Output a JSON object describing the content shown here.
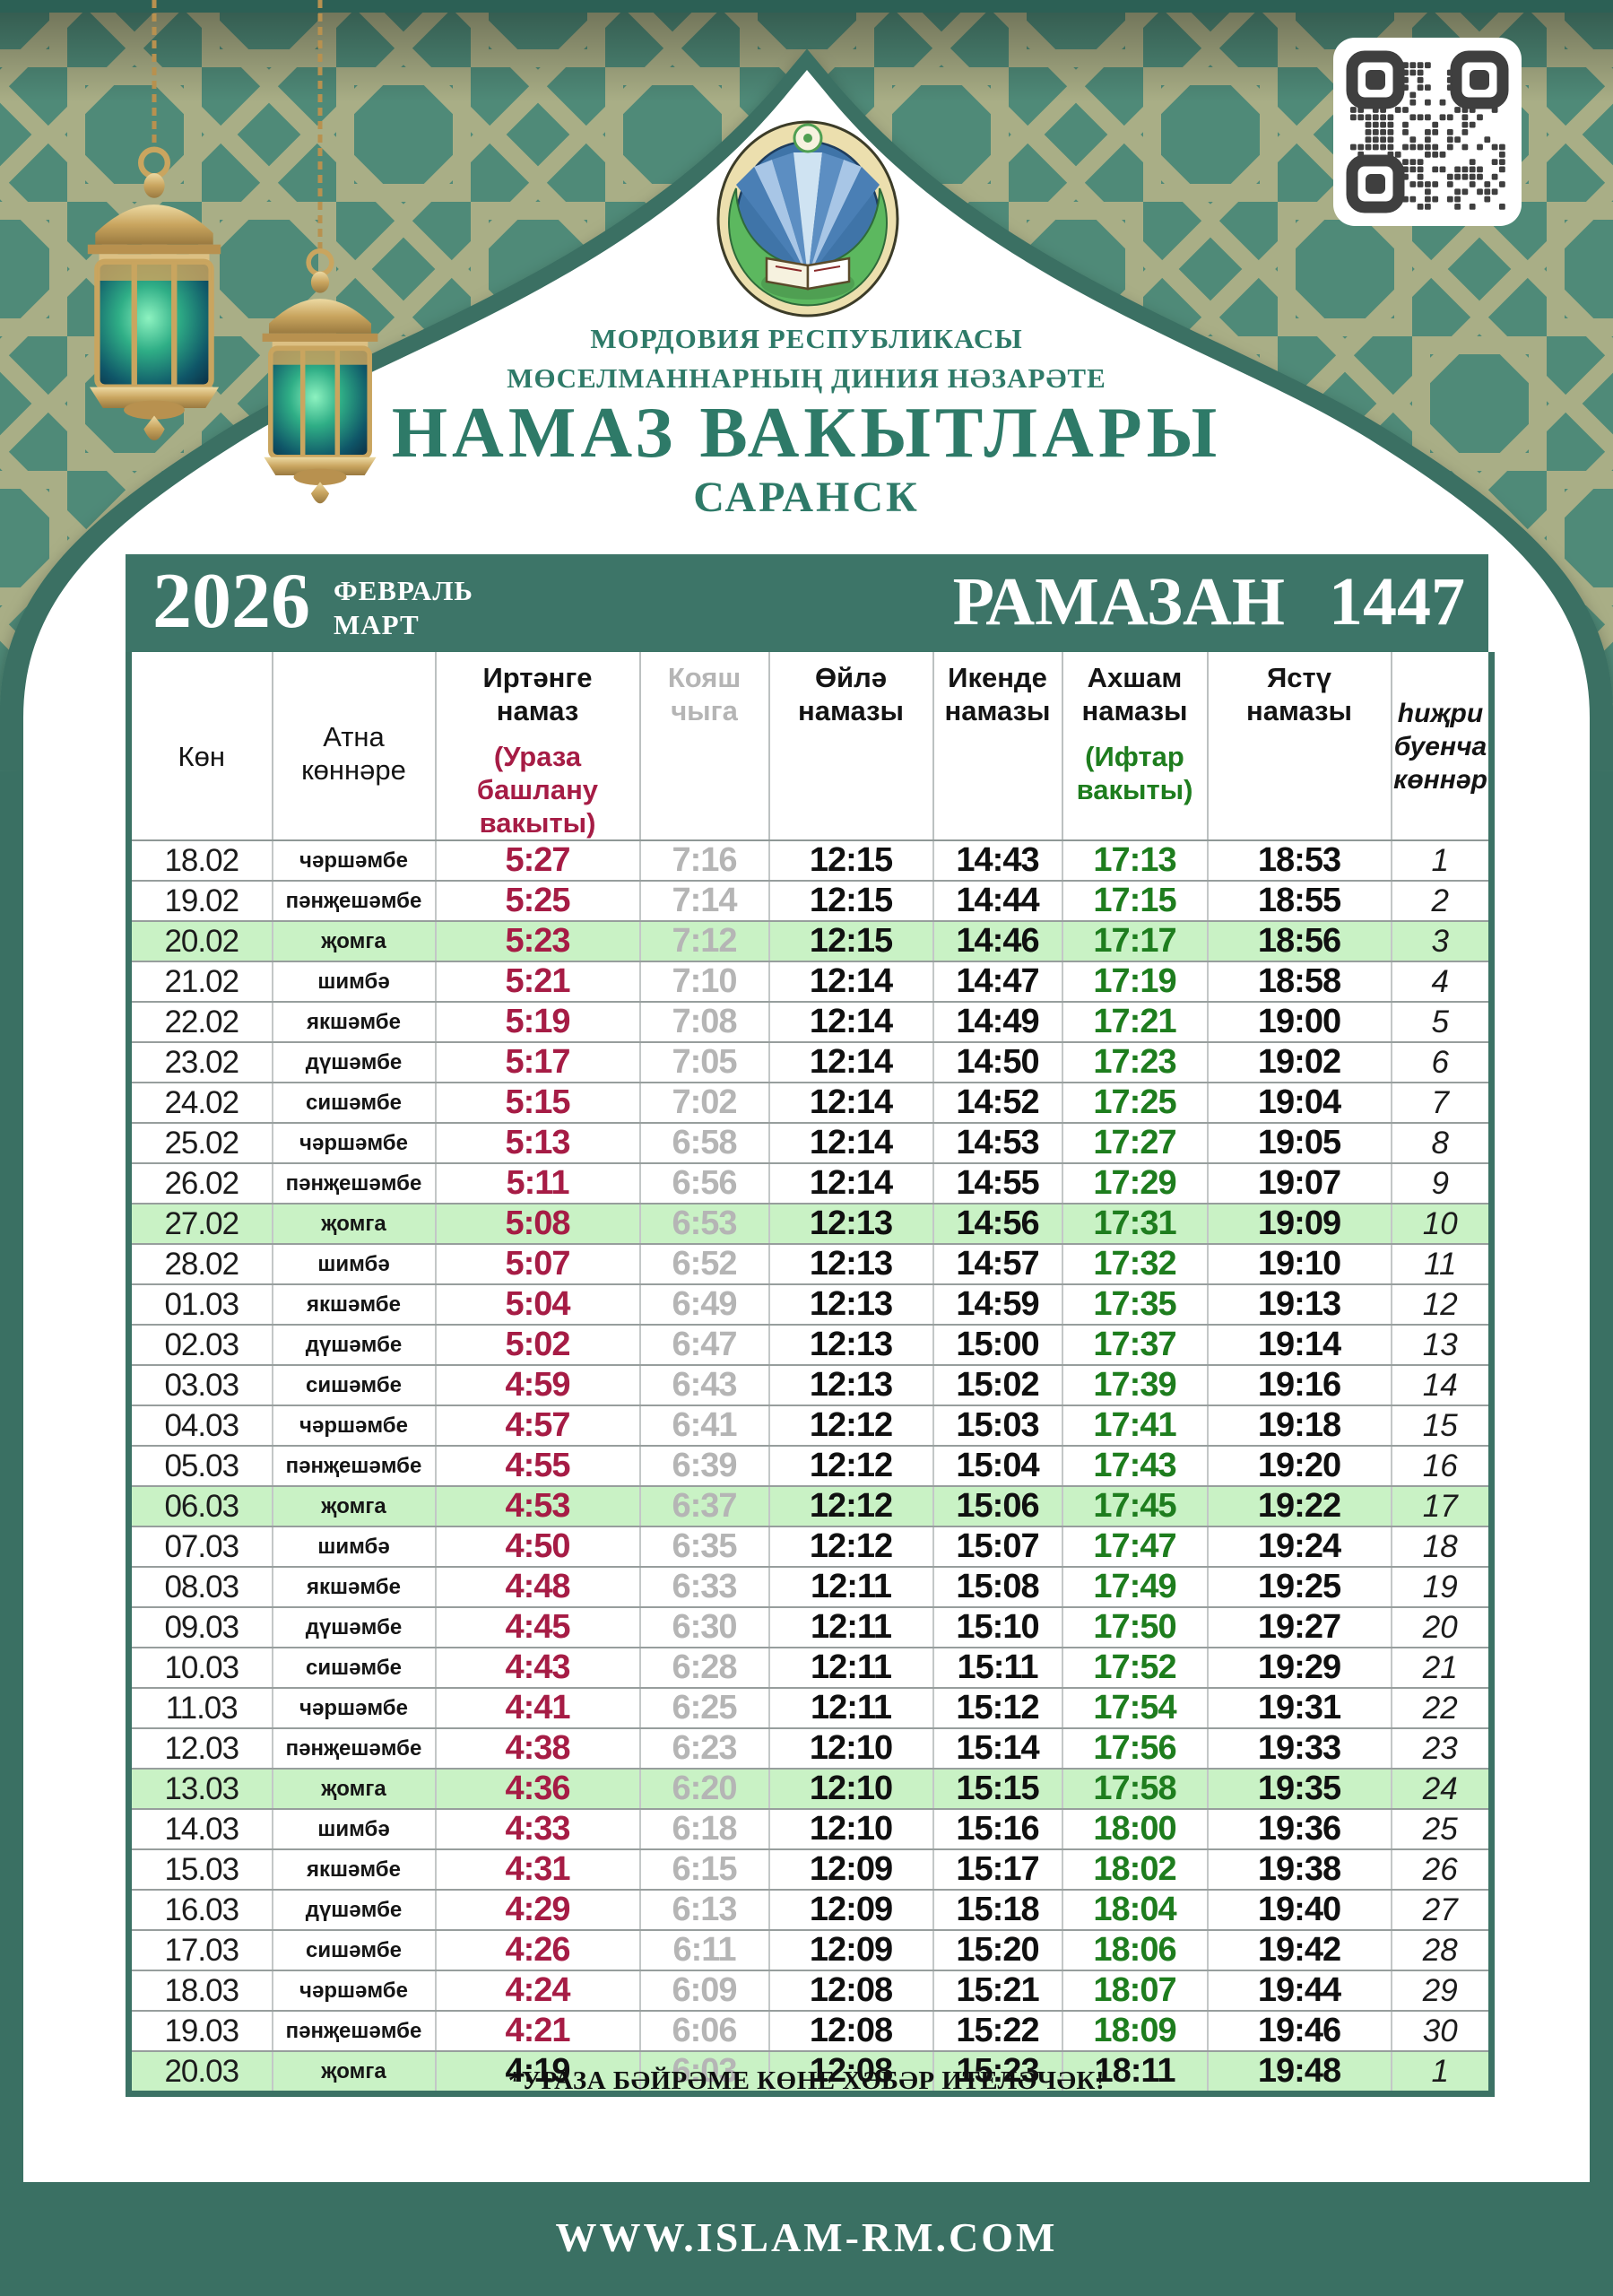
{
  "colors": {
    "frame_teal": "#3a7063",
    "top_bar_teal": "#2c6055",
    "pattern_teal": "#4f8a78",
    "pattern_line_olive": "#a9ae86",
    "calendar_bar_teal": "#3d7568",
    "accent_title_teal": "#2e7a68",
    "friday_row_green": "#c9f2c5",
    "fajr_red": "#a61c45",
    "maghrib_green": "#1e7d1e",
    "sunrise_gray": "#b5b5b5"
  },
  "header": {
    "org_line1": "МОРДОВИЯ РЕСПУБЛИКАСЫ",
    "org_line2": "МӨСЕЛМАННАРНЫҢ ДИНИЯ НӘЗАРӘТЕ",
    "title": "НАМАЗ ВАКЫТЛАРЫ",
    "city": "САРАНСК",
    "emblem": "emblem-of-muslim-spiritual-directorate",
    "decor": [
      "hanging-lantern",
      "hanging-lantern",
      "qr-code",
      "islamic-star-pattern"
    ]
  },
  "calendar_bar": {
    "year": "2026",
    "month1": "ФЕВРАЛЬ",
    "month2": "МАРТ",
    "ramadan": "РАМАЗАН  1447"
  },
  "table": {
    "headers": {
      "col_day": "Көн",
      "col_weekday": "Атна көннәре",
      "col_fajr": "Иртәнге намаз",
      "col_fajr_sub": "(Ураза башлану вакыты)",
      "col_sunrise": "Кояш чыга",
      "col_zuhr": "Өйлә намазы",
      "col_asr": "Икенде намазы",
      "col_maghrib": "Ахшам намазы",
      "col_maghrib_sub": "(Ифтар вакыты)",
      "col_isha": "Ястү намазы",
      "col_hijri": "һиҗри буенча көннәр"
    },
    "rows": [
      {
        "date": "18.02",
        "day": "чәршәмбе",
        "fajr": "5:27",
        "sunrise": "7:16",
        "zuhr": "12:15",
        "asr": "14:43",
        "maghrib": "17:13",
        "isha": "18:53",
        "hijri": "1",
        "friday": false
      },
      {
        "date": "19.02",
        "day": "пәнҗешәмбе",
        "fajr": "5:25",
        "sunrise": "7:14",
        "zuhr": "12:15",
        "asr": "14:44",
        "maghrib": "17:15",
        "isha": "18:55",
        "hijri": "2",
        "friday": false
      },
      {
        "date": "20.02",
        "day": "җомга",
        "fajr": "5:23",
        "sunrise": "7:12",
        "zuhr": "12:15",
        "asr": "14:46",
        "maghrib": "17:17",
        "isha": "18:56",
        "hijri": "3",
        "friday": true
      },
      {
        "date": "21.02",
        "day": "шимбә",
        "fajr": "5:21",
        "sunrise": "7:10",
        "zuhr": "12:14",
        "asr": "14:47",
        "maghrib": "17:19",
        "isha": "18:58",
        "hijri": "4",
        "friday": false
      },
      {
        "date": "22.02",
        "day": "якшәмбе",
        "fajr": "5:19",
        "sunrise": "7:08",
        "zuhr": "12:14",
        "asr": "14:49",
        "maghrib": "17:21",
        "isha": "19:00",
        "hijri": "5",
        "friday": false
      },
      {
        "date": "23.02",
        "day": "дүшәмбе",
        "fajr": "5:17",
        "sunrise": "7:05",
        "zuhr": "12:14",
        "asr": "14:50",
        "maghrib": "17:23",
        "isha": "19:02",
        "hijri": "6",
        "friday": false
      },
      {
        "date": "24.02",
        "day": "сишәмбе",
        "fajr": "5:15",
        "sunrise": "7:02",
        "zuhr": "12:14",
        "asr": "14:52",
        "maghrib": "17:25",
        "isha": "19:04",
        "hijri": "7",
        "friday": false
      },
      {
        "date": "25.02",
        "day": "чәршәмбе",
        "fajr": "5:13",
        "sunrise": "6:58",
        "zuhr": "12:14",
        "asr": "14:53",
        "maghrib": "17:27",
        "isha": "19:05",
        "hijri": "8",
        "friday": false
      },
      {
        "date": "26.02",
        "day": "пәнҗешәмбе",
        "fajr": "5:11",
        "sunrise": "6:56",
        "zuhr": "12:14",
        "asr": "14:55",
        "maghrib": "17:29",
        "isha": "19:07",
        "hijri": "9",
        "friday": false
      },
      {
        "date": "27.02",
        "day": "җомга",
        "fajr": "5:08",
        "sunrise": "6:53",
        "zuhr": "12:13",
        "asr": "14:56",
        "maghrib": "17:31",
        "isha": "19:09",
        "hijri": "10",
        "friday": true
      },
      {
        "date": "28.02",
        "day": "шимбә",
        "fajr": "5:07",
        "sunrise": "6:52",
        "zuhr": "12:13",
        "asr": "14:57",
        "maghrib": "17:32",
        "isha": "19:10",
        "hijri": "11",
        "friday": false
      },
      {
        "date": "01.03",
        "day": "якшәмбе",
        "fajr": "5:04",
        "sunrise": "6:49",
        "zuhr": "12:13",
        "asr": "14:59",
        "maghrib": "17:35",
        "isha": "19:13",
        "hijri": "12",
        "friday": false
      },
      {
        "date": "02.03",
        "day": "дүшәмбе",
        "fajr": "5:02",
        "sunrise": "6:47",
        "zuhr": "12:13",
        "asr": "15:00",
        "maghrib": "17:37",
        "isha": "19:14",
        "hijri": "13",
        "friday": false
      },
      {
        "date": "03.03",
        "day": "сишәмбе",
        "fajr": "4:59",
        "sunrise": "6:43",
        "zuhr": "12:13",
        "asr": "15:02",
        "maghrib": "17:39",
        "isha": "19:16",
        "hijri": "14",
        "friday": false
      },
      {
        "date": "04.03",
        "day": "чәршәмбе",
        "fajr": "4:57",
        "sunrise": "6:41",
        "zuhr": "12:12",
        "asr": "15:03",
        "maghrib": "17:41",
        "isha": "19:18",
        "hijri": "15",
        "friday": false
      },
      {
        "date": "05.03",
        "day": "пәнҗешәмбе",
        "fajr": "4:55",
        "sunrise": "6:39",
        "zuhr": "12:12",
        "asr": "15:04",
        "maghrib": "17:43",
        "isha": "19:20",
        "hijri": "16",
        "friday": false
      },
      {
        "date": "06.03",
        "day": "җомга",
        "fajr": "4:53",
        "sunrise": "6:37",
        "zuhr": "12:12",
        "asr": "15:06",
        "maghrib": "17:45",
        "isha": "19:22",
        "hijri": "17",
        "friday": true
      },
      {
        "date": "07.03",
        "day": "шимбә",
        "fajr": "4:50",
        "sunrise": "6:35",
        "zuhr": "12:12",
        "asr": "15:07",
        "maghrib": "17:47",
        "isha": "19:24",
        "hijri": "18",
        "friday": false
      },
      {
        "date": "08.03",
        "day": "якшәмбе",
        "fajr": "4:48",
        "sunrise": "6:33",
        "zuhr": "12:11",
        "asr": "15:08",
        "maghrib": "17:49",
        "isha": "19:25",
        "hijri": "19",
        "friday": false
      },
      {
        "date": "09.03",
        "day": "дүшәмбе",
        "fajr": "4:45",
        "sunrise": "6:30",
        "zuhr": "12:11",
        "asr": "15:10",
        "maghrib": "17:50",
        "isha": "19:27",
        "hijri": "20",
        "friday": false
      },
      {
        "date": "10.03",
        "day": "сишәмбе",
        "fajr": "4:43",
        "sunrise": "6:28",
        "zuhr": "12:11",
        "asr": "15:11",
        "maghrib": "17:52",
        "isha": "19:29",
        "hijri": "21",
        "friday": false
      },
      {
        "date": "11.03",
        "day": "чәршәмбе",
        "fajr": "4:41",
        "sunrise": "6:25",
        "zuhr": "12:11",
        "asr": "15:12",
        "maghrib": "17:54",
        "isha": "19:31",
        "hijri": "22",
        "friday": false
      },
      {
        "date": "12.03",
        "day": "пәнҗешәмбе",
        "fajr": "4:38",
        "sunrise": "6:23",
        "zuhr": "12:10",
        "asr": "15:14",
        "maghrib": "17:56",
        "isha": "19:33",
        "hijri": "23",
        "friday": false
      },
      {
        "date": "13.03",
        "day": "җомга",
        "fajr": "4:36",
        "sunrise": "6:20",
        "zuhr": "12:10",
        "asr": "15:15",
        "maghrib": "17:58",
        "isha": "19:35",
        "hijri": "24",
        "friday": true
      },
      {
        "date": "14.03",
        "day": "шимбә",
        "fajr": "4:33",
        "sunrise": "6:18",
        "zuhr": "12:10",
        "asr": "15:16",
        "maghrib": "18:00",
        "isha": "19:36",
        "hijri": "25",
        "friday": false
      },
      {
        "date": "15.03",
        "day": "якшәмбе",
        "fajr": "4:31",
        "sunrise": "6:15",
        "zuhr": "12:09",
        "asr": "15:17",
        "maghrib": "18:02",
        "isha": "19:38",
        "hijri": "26",
        "friday": false
      },
      {
        "date": "16.03",
        "day": "дүшәмбе",
        "fajr": "4:29",
        "sunrise": "6:13",
        "zuhr": "12:09",
        "asr": "15:18",
        "maghrib": "18:04",
        "isha": "19:40",
        "hijri": "27",
        "friday": false
      },
      {
        "date": "17.03",
        "day": "сишәмбе",
        "fajr": "4:26",
        "sunrise": "6:11",
        "zuhr": "12:09",
        "asr": "15:20",
        "maghrib": "18:06",
        "isha": "19:42",
        "hijri": "28",
        "friday": false
      },
      {
        "date": "18.03",
        "day": "чәршәмбе",
        "fajr": "4:24",
        "sunrise": "6:09",
        "zuhr": "12:08",
        "asr": "15:21",
        "maghrib": "18:07",
        "isha": "19:44",
        "hijri": "29",
        "friday": false
      },
      {
        "date": "19.03",
        "day": "пәнҗешәмбе",
        "fajr": "4:21",
        "sunrise": "6:06",
        "zuhr": "12:08",
        "asr": "15:22",
        "maghrib": "18:09",
        "isha": "19:46",
        "hijri": "30",
        "friday": false
      },
      {
        "date": "20.03",
        "day": "җомга",
        "fajr": "4:19",
        "sunrise": "6:03",
        "zuhr": "12:08",
        "asr": "15:23",
        "maghrib": "18:11",
        "isha": "19:48",
        "hijri": "1",
        "friday": true,
        "plain": true
      }
    ]
  },
  "footer": {
    "note": "*УРАЗА БӘЙРӘМЕ КӨНЕ ХӘБӘР ИТЕЛӘЧӘК!",
    "website": "WWW.ISLAM-RM.COM"
  }
}
